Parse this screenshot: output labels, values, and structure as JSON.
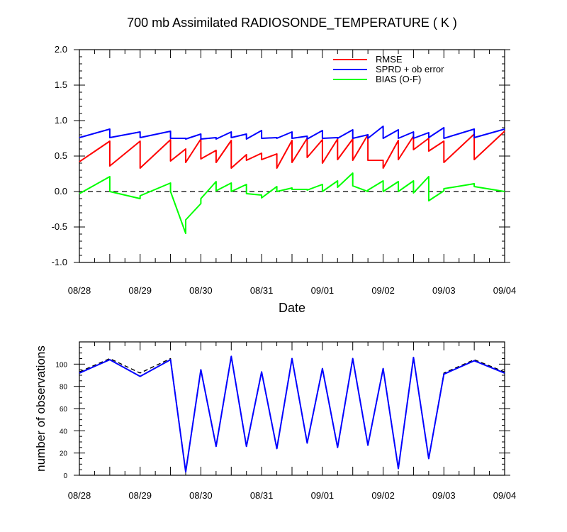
{
  "chart_data": [
    {
      "type": "line",
      "title": "700 mb Assimilated RADIOSONDE_TEMPERATURE ( K )",
      "xlabel": "Date",
      "ylabel": "",
      "ylim": [
        -1.0,
        2.0
      ],
      "yticks": [
        "-1.0",
        "-0.5",
        "0.0",
        "0.5",
        "1.0",
        "1.5",
        "2.0"
      ],
      "xlim": [
        0,
        7
      ],
      "xticks": [
        "08/28",
        "08/29",
        "08/30",
        "08/31",
        "09/01",
        "09/02",
        "09/03",
        "09/04"
      ],
      "zero_line": true,
      "legend_position": "top-right",
      "series": [
        {
          "name": "RMSE",
          "color": "#ff0000",
          "x": [
            0.0,
            0.5,
            0.5,
            1.0,
            1.0,
            1.5,
            1.5,
            1.75,
            1.75,
            2.0,
            2.0,
            2.25,
            2.25,
            2.5,
            2.5,
            2.75,
            2.75,
            3.0,
            3.0,
            3.25,
            3.25,
            3.5,
            3.5,
            3.75,
            3.75,
            4.0,
            4.0,
            4.25,
            4.25,
            4.5,
            4.5,
            4.75,
            4.75,
            5.0,
            5.0,
            5.25,
            5.25,
            5.5,
            5.5,
            5.75,
            5.75,
            6.0,
            6.0,
            6.5,
            6.5,
            7.0
          ],
          "y": [
            0.42,
            0.71,
            0.36,
            0.71,
            0.33,
            0.73,
            0.43,
            0.6,
            0.41,
            0.74,
            0.46,
            0.58,
            0.41,
            0.72,
            0.33,
            0.52,
            0.44,
            0.54,
            0.45,
            0.53,
            0.33,
            0.72,
            0.41,
            0.75,
            0.48,
            0.73,
            0.4,
            0.74,
            0.45,
            0.74,
            0.44,
            0.8,
            0.44,
            0.44,
            0.33,
            0.72,
            0.45,
            0.78,
            0.59,
            0.75,
            0.57,
            0.71,
            0.41,
            0.81,
            0.45,
            0.85
          ]
        },
        {
          "name": "SPRD + ob error",
          "color": "#0000ff",
          "x": [
            0.0,
            0.5,
            0.5,
            1.0,
            1.0,
            1.5,
            1.5,
            1.75,
            1.75,
            2.0,
            2.0,
            2.25,
            2.25,
            2.5,
            2.5,
            2.75,
            2.75,
            3.0,
            3.0,
            3.25,
            3.25,
            3.5,
            3.5,
            3.75,
            3.75,
            4.0,
            4.0,
            4.25,
            4.25,
            4.5,
            4.5,
            4.75,
            4.75,
            5.0,
            5.0,
            5.25,
            5.25,
            5.5,
            5.5,
            5.75,
            5.75,
            6.0,
            6.0,
            6.5,
            6.5,
            7.0
          ],
          "y": [
            0.76,
            0.88,
            0.76,
            0.84,
            0.76,
            0.85,
            0.75,
            0.75,
            0.74,
            0.81,
            0.74,
            0.76,
            0.74,
            0.84,
            0.76,
            0.81,
            0.74,
            0.86,
            0.75,
            0.76,
            0.75,
            0.84,
            0.75,
            0.78,
            0.74,
            0.86,
            0.75,
            0.76,
            0.75,
            0.87,
            0.75,
            0.8,
            0.75,
            0.92,
            0.75,
            0.87,
            0.75,
            0.84,
            0.75,
            0.83,
            0.76,
            0.9,
            0.75,
            0.88,
            0.76,
            0.88
          ]
        },
        {
          "name": "BIAS (O-F)",
          "color": "#00ff00",
          "x": [
            0.0,
            0.5,
            0.5,
            1.0,
            1.0,
            1.5,
            1.5,
            1.75,
            1.75,
            2.0,
            2.0,
            2.25,
            2.25,
            2.5,
            2.5,
            2.75,
            2.75,
            3.0,
            3.0,
            3.25,
            3.25,
            3.5,
            3.5,
            3.75,
            3.75,
            4.0,
            4.0,
            4.25,
            4.25,
            4.5,
            4.5,
            4.75,
            4.75,
            5.0,
            5.0,
            5.25,
            5.25,
            5.5,
            5.5,
            5.75,
            5.75,
            6.0,
            6.0,
            6.5,
            6.5,
            7.0
          ],
          "y": [
            -0.03,
            0.21,
            0.0,
            -0.1,
            -0.06,
            0.12,
            0.0,
            -0.59,
            -0.4,
            -0.17,
            -0.1,
            0.14,
            0.01,
            0.12,
            0.0,
            0.1,
            -0.03,
            -0.05,
            -0.09,
            0.07,
            0.0,
            0.05,
            0.03,
            0.03,
            0.02,
            0.1,
            0.0,
            0.15,
            0.06,
            0.26,
            0.08,
            0.0,
            0.02,
            0.15,
            0.0,
            0.14,
            0.0,
            0.15,
            -0.02,
            0.21,
            -0.13,
            0.01,
            0.04,
            0.11,
            0.07,
            0.0
          ]
        }
      ]
    },
    {
      "type": "line",
      "title": "",
      "xlabel": "",
      "ylabel": "number of observations",
      "ylim": [
        0,
        120
      ],
      "yticks": [
        "0",
        "20",
        "40",
        "60",
        "80",
        "100"
      ],
      "xlim": [
        0,
        7
      ],
      "xticks": [
        "08/28",
        "08/29",
        "08/30",
        "08/31",
        "09/01",
        "09/02",
        "09/03",
        "09/04"
      ],
      "series": [
        {
          "style": "dashed",
          "color": "#000000",
          "x": [
            0.0,
            0.5,
            1.0,
            1.5,
            1.75,
            2.0,
            2.25,
            2.5,
            2.75,
            3.0,
            3.25,
            3.5,
            3.75,
            4.0,
            4.25,
            4.5,
            4.75,
            5.0,
            5.25,
            5.5,
            5.75,
            6.0,
            6.5,
            7.0
          ],
          "y": [
            93,
            105,
            92,
            105,
            3,
            95,
            26,
            107,
            26,
            93,
            24,
            105,
            29,
            96,
            25,
            105,
            27,
            96,
            6,
            106,
            15,
            92,
            104,
            93
          ]
        },
        {
          "style": "solid",
          "color": "#0000ff",
          "x": [
            0.0,
            0.5,
            1.0,
            1.5,
            1.75,
            2.0,
            2.25,
            2.5,
            2.75,
            3.0,
            3.25,
            3.5,
            3.75,
            4.0,
            4.25,
            4.5,
            4.75,
            5.0,
            5.25,
            5.5,
            5.75,
            6.0,
            6.5,
            7.0
          ],
          "y": [
            92,
            104,
            89,
            104,
            3,
            95,
            26,
            107,
            26,
            93,
            24,
            105,
            29,
            96,
            25,
            105,
            27,
            96,
            6,
            106,
            15,
            91,
            103,
            92
          ]
        }
      ]
    }
  ]
}
